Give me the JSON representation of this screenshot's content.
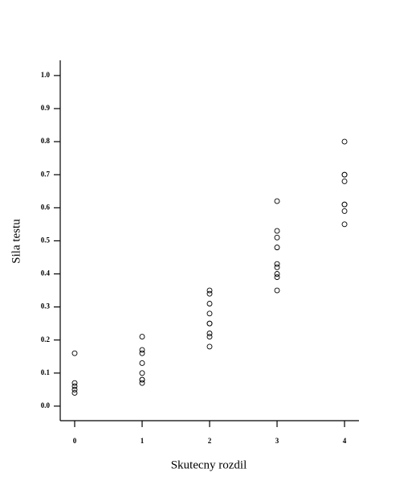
{
  "chart_data": {
    "type": "scatter",
    "xlabel": "Skutecny rozdil",
    "ylabel": "Sila testu",
    "x": [
      0,
      0,
      0,
      0,
      0,
      1,
      1,
      1,
      1,
      1,
      1,
      1,
      1,
      2,
      2,
      2,
      2,
      2,
      2,
      2,
      2,
      2,
      3,
      3,
      3,
      3,
      3,
      3,
      3,
      3,
      3,
      4,
      4,
      4,
      4,
      4,
      4,
      4,
      4
    ],
    "values": [
      0.16,
      0.07,
      0.06,
      0.05,
      0.04,
      0.21,
      0.17,
      0.16,
      0.13,
      0.1,
      0.08,
      0.08,
      0.07,
      0.35,
      0.34,
      0.31,
      0.28,
      0.25,
      0.25,
      0.22,
      0.21,
      0.18,
      0.62,
      0.53,
      0.51,
      0.48,
      0.43,
      0.42,
      0.4,
      0.39,
      0.35,
      0.8,
      0.7,
      0.7,
      0.68,
      0.61,
      0.61,
      0.59,
      0.55
    ],
    "color": "#000000",
    "xlim": [
      -0.214,
      4.214
    ],
    "xticks": [
      0,
      1,
      2,
      3,
      4
    ],
    "ylim": [
      -0.044,
      1.046
    ],
    "yticks": [
      {
        "value": 0,
        "label": "0.0"
      },
      0.1,
      0.2,
      0.3,
      0.4,
      0.5,
      0.6,
      0.7,
      0.8,
      0.9,
      {
        "value": 1,
        "label": "1.0"
      }
    ]
  }
}
